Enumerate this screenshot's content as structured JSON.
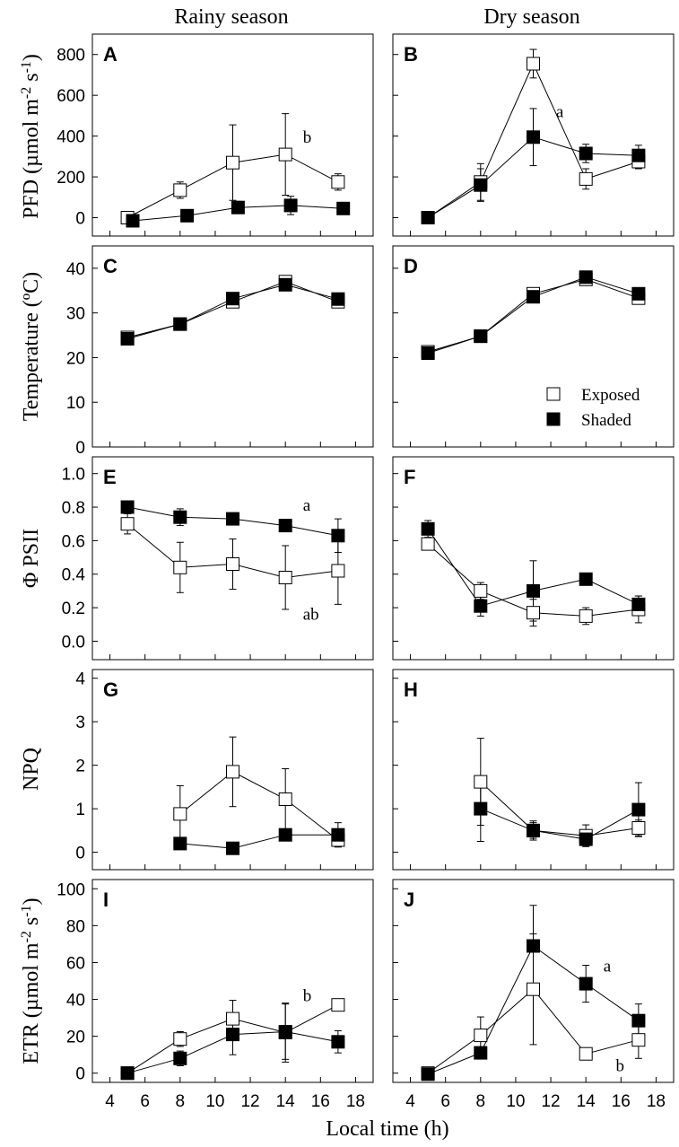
{
  "figure": {
    "column_titles": [
      "Rainy season",
      "Dry season"
    ],
    "x_axis_label": "Local time (h)",
    "legend": {
      "exposed_label": "Exposed",
      "shaded_label": "Shaded"
    }
  },
  "chart_data": [
    {
      "panel": "A",
      "type": "line",
      "ylabel": "PFD (µmol m-2 s-1)",
      "xlim": [
        3,
        19
      ],
      "xticks": [
        4,
        6,
        8,
        10,
        12,
        14,
        16,
        18
      ],
      "ylim": [
        -90,
        900
      ],
      "yticks": [
        0,
        200,
        400,
        600,
        800
      ],
      "yticklabels": [
        "0",
        "200",
        "400",
        "600",
        "800"
      ],
      "series": [
        {
          "name": "Exposed",
          "x": [
            5,
            8,
            11,
            14,
            17
          ],
          "y": [
            0,
            135,
            270,
            310,
            175
          ],
          "err": [
            20,
            40,
            185,
            200,
            40
          ]
        },
        {
          "name": "Shaded",
          "x": [
            5.3,
            8.4,
            11.3,
            14.3,
            17.3
          ],
          "y": [
            -15,
            10,
            50,
            60,
            45
          ],
          "err": [
            15,
            15,
            30,
            45,
            15
          ]
        }
      ],
      "annotations": [
        {
          "text": "b",
          "x": 15,
          "y": 395
        }
      ]
    },
    {
      "panel": "B",
      "type": "line",
      "ylabel": "",
      "xlim": [
        3,
        19
      ],
      "xticks": [
        4,
        6,
        8,
        10,
        12,
        14,
        16,
        18
      ],
      "ylim": [
        -90,
        900
      ],
      "yticks": [
        0,
        200,
        400,
        600,
        800
      ],
      "yticklabels": [],
      "series": [
        {
          "name": "Exposed",
          "x": [
            5,
            8,
            11,
            14,
            17
          ],
          "y": [
            0,
            175,
            755,
            190,
            275
          ],
          "err": [
            15,
            90,
            70,
            50,
            35
          ]
        },
        {
          "name": "Shaded",
          "x": [
            5,
            8,
            11,
            14,
            17
          ],
          "y": [
            0,
            160,
            395,
            315,
            305
          ],
          "err": [
            15,
            80,
            140,
            45,
            50
          ]
        }
      ],
      "annotations": [
        {
          "text": "a",
          "x": 12.3,
          "y": 520
        }
      ]
    },
    {
      "panel": "C",
      "type": "line",
      "ylabel": "Temperature (ºC)",
      "xlim": [
        3,
        19
      ],
      "xticks": [
        4,
        6,
        8,
        10,
        12,
        14,
        16,
        18
      ],
      "ylim": [
        0,
        45
      ],
      "yticks": [
        0,
        10,
        20,
        30,
        40
      ],
      "yticklabels": [
        "0",
        "10",
        "20",
        "30",
        "40"
      ],
      "series": [
        {
          "name": "Exposed",
          "x": [
            5,
            8,
            11,
            14,
            17
          ],
          "y": [
            24.5,
            27.5,
            32.5,
            37,
            32.5
          ],
          "err": [
            0.5,
            0.6,
            0.8,
            0.7,
            0.6
          ]
        },
        {
          "name": "Shaded",
          "x": [
            5,
            8,
            11,
            14,
            17
          ],
          "y": [
            24.2,
            27.5,
            33.2,
            36.3,
            33.1
          ],
          "err": [
            0.5,
            0.6,
            0.8,
            0.7,
            0.6
          ]
        }
      ],
      "annotations": []
    },
    {
      "panel": "D",
      "type": "line",
      "ylabel": "",
      "xlim": [
        3,
        19
      ],
      "xticks": [
        4,
        6,
        8,
        10,
        12,
        14,
        16,
        18
      ],
      "ylim": [
        0,
        45
      ],
      "yticks": [
        0,
        10,
        20,
        30,
        40
      ],
      "yticklabels": [],
      "series": [
        {
          "name": "Exposed",
          "x": [
            5,
            8,
            11,
            14,
            17
          ],
          "y": [
            21.3,
            24.8,
            34.3,
            37.5,
            33.3
          ],
          "err": [
            0.5,
            0.6,
            0.8,
            0.7,
            0.6
          ]
        },
        {
          "name": "Shaded",
          "x": [
            5,
            8,
            11,
            14,
            17
          ],
          "y": [
            21.0,
            24.8,
            33.6,
            38.0,
            34.3
          ],
          "err": [
            0.5,
            0.6,
            0.8,
            0.7,
            0.6
          ]
        }
      ],
      "annotations": []
    },
    {
      "panel": "E",
      "type": "line",
      "ylabel": "Φ PSII",
      "xlim": [
        3,
        19
      ],
      "xticks": [
        4,
        6,
        8,
        10,
        12,
        14,
        16,
        18
      ],
      "ylim": [
        -0.11,
        1.1
      ],
      "yticks": [
        0.0,
        0.2,
        0.4,
        0.6,
        0.8,
        1.0
      ],
      "yticklabels": [
        "0.0",
        "0.2",
        "0.4",
        "0.6",
        "0.8",
        "1.0"
      ],
      "series": [
        {
          "name": "Exposed",
          "x": [
            5,
            8,
            11,
            14,
            17
          ],
          "y": [
            0.7,
            0.44,
            0.46,
            0.38,
            0.42
          ],
          "err": [
            0.06,
            0.15,
            0.15,
            0.19,
            0.2
          ]
        },
        {
          "name": "Shaded",
          "x": [
            5,
            8,
            11,
            14,
            17
          ],
          "y": [
            0.8,
            0.74,
            0.73,
            0.69,
            0.63
          ],
          "err": [
            0.02,
            0.05,
            0.02,
            0.02,
            0.1
          ]
        }
      ],
      "annotations": [
        {
          "text": "a",
          "x": 15,
          "y": 0.81
        },
        {
          "text": "ab",
          "x": 15,
          "y": 0.16
        }
      ]
    },
    {
      "panel": "F",
      "type": "line",
      "ylabel": "",
      "xlim": [
        3,
        19
      ],
      "xticks": [
        4,
        6,
        8,
        10,
        12,
        14,
        16,
        18
      ],
      "ylim": [
        -0.11,
        1.1
      ],
      "yticks": [
        0.0,
        0.2,
        0.4,
        0.6,
        0.8,
        1.0
      ],
      "yticklabels": [],
      "series": [
        {
          "name": "Exposed",
          "x": [
            5,
            8,
            11,
            14,
            17
          ],
          "y": [
            0.58,
            0.3,
            0.17,
            0.15,
            0.19
          ],
          "err": [
            0.03,
            0.05,
            0.08,
            0.05,
            0.08
          ]
        },
        {
          "name": "Shaded",
          "x": [
            5,
            8,
            11,
            14,
            17
          ],
          "y": [
            0.67,
            0.21,
            0.3,
            0.37,
            0.22
          ],
          "err": [
            0.05,
            0.06,
            0.18,
            0.02,
            0.05
          ]
        }
      ],
      "annotations": []
    },
    {
      "panel": "G",
      "type": "line",
      "ylabel": "NPQ",
      "xlim": [
        3,
        19
      ],
      "xticks": [
        4,
        6,
        8,
        10,
        12,
        14,
        16,
        18
      ],
      "ylim": [
        -0.4,
        4.2
      ],
      "yticks": [
        0,
        1,
        2,
        3,
        4
      ],
      "yticklabels": [
        "0",
        "1",
        "2",
        "3",
        "4"
      ],
      "series": [
        {
          "name": "Exposed",
          "x": [
            8,
            11,
            14,
            17
          ],
          "y": [
            0.88,
            1.85,
            1.22,
            0.28
          ],
          "err": [
            0.65,
            0.8,
            0.7,
            0.15
          ]
        },
        {
          "name": "Shaded",
          "x": [
            8,
            11,
            14,
            17
          ],
          "y": [
            0.2,
            0.09,
            0.4,
            0.4
          ],
          "err": [
            0.05,
            0.05,
            0.05,
            0.28
          ]
        }
      ],
      "annotations": []
    },
    {
      "panel": "H",
      "type": "line",
      "ylabel": "",
      "xlim": [
        3,
        19
      ],
      "xticks": [
        4,
        6,
        8,
        10,
        12,
        14,
        16,
        18
      ],
      "ylim": [
        -0.4,
        4.2
      ],
      "yticks": [
        0,
        1,
        2,
        3,
        4
      ],
      "yticklabels": [],
      "series": [
        {
          "name": "Exposed",
          "x": [
            8,
            11,
            14,
            17
          ],
          "y": [
            1.62,
            0.5,
            0.38,
            0.56
          ],
          "err": [
            1.0,
            0.18,
            0.25,
            0.18
          ]
        },
        {
          "name": "Shaded",
          "x": [
            8,
            11,
            14,
            17
          ],
          "y": [
            1.0,
            0.5,
            0.3,
            0.98
          ],
          "err": [
            0.75,
            0.22,
            0.15,
            0.62
          ]
        }
      ],
      "annotations": []
    },
    {
      "panel": "I",
      "type": "line",
      "ylabel": "ETR (µmol m-2 s-1)",
      "xlim": [
        3,
        19
      ],
      "xticks": [
        4,
        6,
        8,
        10,
        12,
        14,
        16,
        18
      ],
      "ylim": [
        -5,
        105
      ],
      "yticks": [
        0,
        20,
        40,
        60,
        80,
        100
      ],
      "yticklabels": [
        "0",
        "20",
        "40",
        "60",
        "80",
        "100"
      ],
      "series": [
        {
          "name": "Exposed",
          "x": [
            5,
            8,
            11,
            14,
            17
          ],
          "y": [
            0,
            18.5,
            29.5,
            22,
            37
          ],
          "err": [
            0.5,
            4,
            10,
            16,
            2
          ]
        },
        {
          "name": "Shaded",
          "x": [
            5,
            8,
            11,
            14,
            17
          ],
          "y": [
            0,
            8,
            21,
            22.5,
            17
          ],
          "err": [
            0.5,
            4,
            11,
            15,
            6
          ]
        }
      ],
      "annotations": [
        {
          "text": "b",
          "x": 15,
          "y": 42
        }
      ]
    },
    {
      "panel": "J",
      "type": "line",
      "ylabel": "",
      "xlim": [
        3,
        19
      ],
      "xticks": [
        4,
        6,
        8,
        10,
        12,
        14,
        16,
        18
      ],
      "ylim": [
        -5,
        105
      ],
      "yticks": [
        0,
        20,
        40,
        60,
        80,
        100
      ],
      "yticklabels": [],
      "series": [
        {
          "name": "Exposed",
          "x": [
            5,
            8,
            11,
            14,
            17
          ],
          "y": [
            0,
            20.5,
            45.5,
            10.5,
            18
          ],
          "err": [
            0.5,
            10,
            30,
            3,
            10
          ]
        },
        {
          "name": "Shaded",
          "x": [
            5,
            8,
            11,
            14,
            17
          ],
          "y": [
            -0.5,
            11,
            69,
            48.5,
            28.5
          ],
          "err": [
            0.5,
            1,
            22,
            10,
            9
          ]
        }
      ],
      "annotations": [
        {
          "text": "a",
          "x": 15,
          "y": 58
        },
        {
          "text": "b",
          "x": 15.7,
          "y": 4
        }
      ]
    }
  ]
}
